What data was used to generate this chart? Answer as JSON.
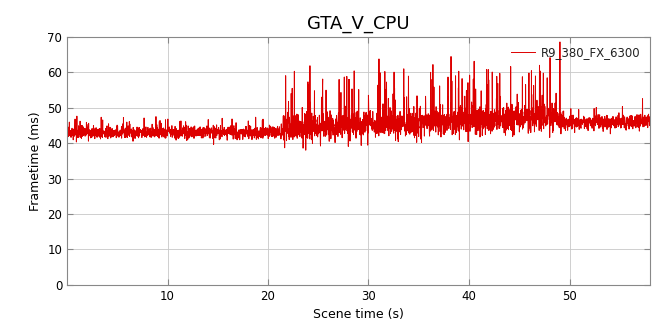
{
  "title": "GTA_V_CPU",
  "xlabel": "Scene time (s)",
  "ylabel": "Frametime (ms)",
  "xlim": [
    0,
    58
  ],
  "ylim": [
    0,
    70
  ],
  "xticks": [
    10,
    20,
    30,
    40,
    50
  ],
  "yticks": [
    0,
    10,
    20,
    30,
    40,
    50,
    60,
    70
  ],
  "line_color": "#dd0000",
  "line_label": "R9_380_FX_6300",
  "line_width": 0.7,
  "bg_color": "#ffffff",
  "axes_bg_color": "#ffffff",
  "grid_color": "#c8c8c8",
  "title_fontsize": 13,
  "label_fontsize": 9,
  "tick_fontsize": 8.5,
  "legend_fontsize": 8.5,
  "seed": 12345,
  "phase1_end": 21.5,
  "phase1_base": 43.0,
  "phase1_noise": 0.9,
  "phase2_end": 48.8,
  "phase2_base": 47.5,
  "phase2_noise": 2.0,
  "phase2_spike_prob": 0.06,
  "phase2_spike_min": 7,
  "phase2_spike_max": 16,
  "phase3_base": 46.0,
  "phase3_noise": 1.0,
  "phase3_spike_prob": 0.02,
  "phase3_spike_min": 2,
  "phase3_spike_max": 5,
  "big_spike_time": 49.05,
  "big_spike_val": 68.5,
  "samples_per_sec": 60
}
